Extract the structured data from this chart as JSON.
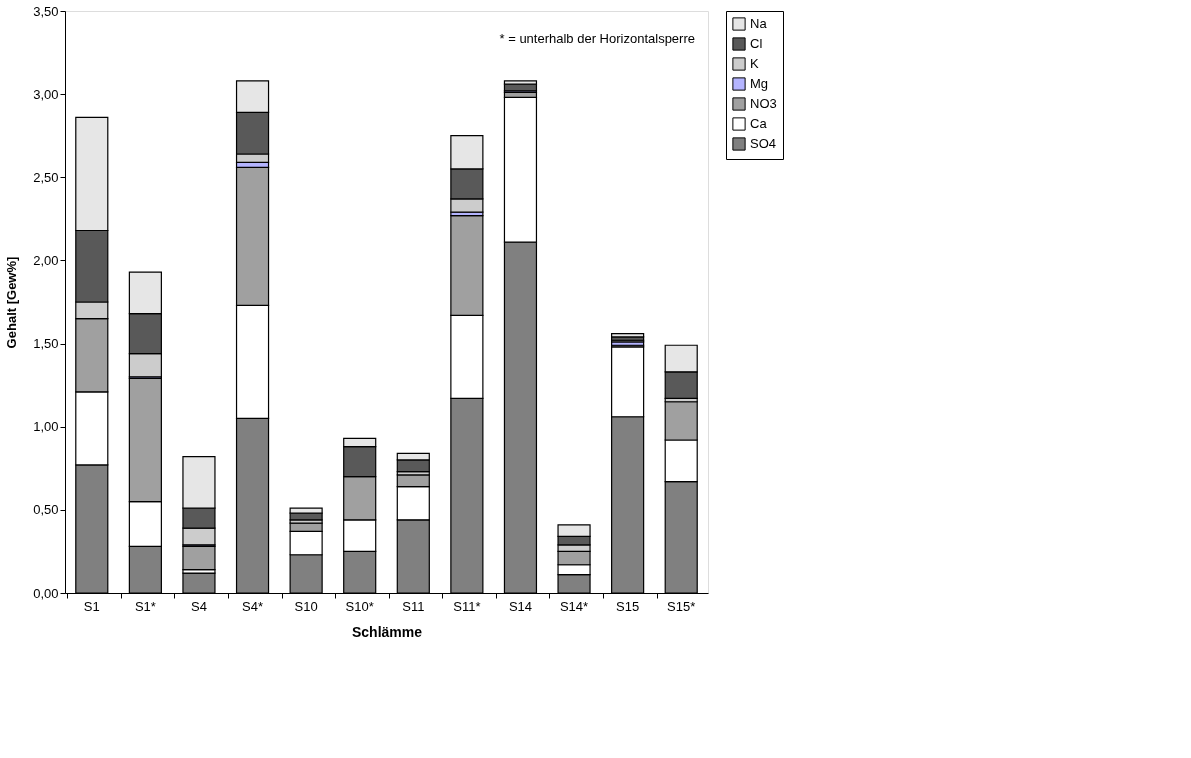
{
  "chart_data": {
    "type": "bar",
    "stacked": true,
    "xlabel": "Schlämme",
    "ylabel": "Gehalt [Gew%]",
    "categories": [
      "S1",
      "S1*",
      "S4",
      "S4*",
      "S10",
      "S10*",
      "S11",
      "S11*",
      "S14",
      "S14*",
      "S15",
      "S15*"
    ],
    "series": [
      {
        "name": "SO4",
        "color": "#808080",
        "values": [
          0.77,
          0.28,
          0.12,
          1.05,
          0.23,
          0.25,
          0.44,
          1.17,
          2.11,
          0.11,
          1.06,
          0.67
        ]
      },
      {
        "name": "Ca",
        "color": "#ffffff",
        "values": [
          0.44,
          0.27,
          0.02,
          0.68,
          0.14,
          0.19,
          0.2,
          0.5,
          0.87,
          0.06,
          0.42,
          0.25
        ]
      },
      {
        "name": "NO3",
        "color": "#a0a0a0",
        "values": [
          0.44,
          0.74,
          0.14,
          0.83,
          0.05,
          0.26,
          0.07,
          0.6,
          0.03,
          0.08,
          0.01,
          0.23
        ]
      },
      {
        "name": "Mg",
        "color": "#b4b4ff",
        "values": [
          null,
          0.01,
          0.01,
          0.03,
          null,
          null,
          null,
          0.02,
          0.01,
          null,
          0.02,
          null
        ]
      },
      {
        "name": "K",
        "color": "#cccccc",
        "values": [
          0.1,
          0.14,
          0.1,
          0.05,
          0.02,
          null,
          0.02,
          0.08,
          null,
          0.04,
          0.01,
          0.02
        ]
      },
      {
        "name": "Cl",
        "color": "#595959",
        "values": [
          0.43,
          0.24,
          0.12,
          0.25,
          0.04,
          0.18,
          0.07,
          0.18,
          0.04,
          0.05,
          0.02,
          0.16
        ]
      },
      {
        "name": "Na",
        "color": "#e6e6e6",
        "values": [
          0.68,
          0.25,
          0.31,
          0.19,
          0.03,
          0.05,
          0.04,
          0.2,
          0.02,
          0.07,
          0.02,
          0.16
        ]
      }
    ],
    "ylim": [
      0,
      3.5
    ],
    "yticks": [
      {
        "value": 0,
        "label": "0,00"
      },
      {
        "value": 0.5,
        "label": "0,50"
      },
      {
        "value": 1,
        "label": "1,00"
      },
      {
        "value": 1.5,
        "label": "1,50"
      },
      {
        "value": 2,
        "label": "2,00"
      },
      {
        "value": 2.5,
        "label": "2,50"
      },
      {
        "value": 3,
        "label": "3,00"
      },
      {
        "value": 3.5,
        "label": "3,50"
      }
    ],
    "grid": false,
    "legend": "right",
    "annotations": [
      "* = unterhalb der Horizontalsperre"
    ]
  }
}
